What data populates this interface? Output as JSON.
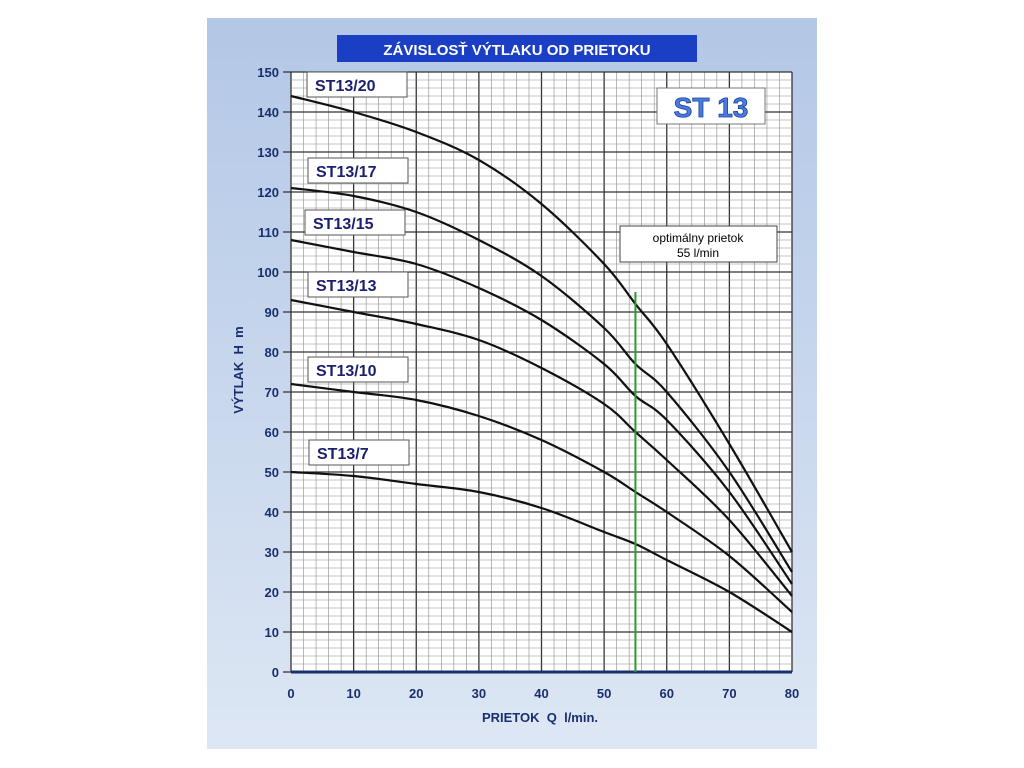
{
  "chart_data": {
    "type": "line",
    "title": "ZÁVISLOSŤ VÝTLAKU OD PRIETOKU",
    "badge": "ST 13",
    "xlabel": "PRIETOK  Q  l/min.",
    "ylabel": "VÝTLAK  H  m",
    "xlim": [
      0,
      80
    ],
    "ylim": [
      0,
      150
    ],
    "xticks": [
      0,
      10,
      20,
      30,
      40,
      50,
      60,
      70,
      80
    ],
    "yticks": [
      0,
      10,
      20,
      30,
      40,
      50,
      60,
      70,
      80,
      90,
      100,
      110,
      120,
      130,
      140,
      150
    ],
    "grid": true,
    "x": [
      0,
      10,
      20,
      30,
      40,
      50,
      55,
      60,
      70,
      80
    ],
    "series": [
      {
        "name": "ST13/20",
        "values": [
          144,
          140,
          135,
          128,
          117,
          102,
          92,
          82,
          57,
          30
        ]
      },
      {
        "name": "ST13/17",
        "values": [
          121,
          119,
          115,
          108,
          99,
          86,
          77,
          70,
          50,
          25
        ]
      },
      {
        "name": "ST13/15",
        "values": [
          108,
          105,
          102,
          96,
          88,
          77,
          69,
          63,
          45,
          22
        ]
      },
      {
        "name": "ST13/13",
        "values": [
          93,
          90,
          87,
          83,
          76,
          67,
          60,
          53,
          38,
          19
        ]
      },
      {
        "name": "ST13/10",
        "values": [
          72,
          70,
          68,
          64,
          58,
          50,
          45,
          40,
          29,
          15
        ]
      },
      {
        "name": "ST13/7",
        "values": [
          50,
          49,
          47,
          45,
          41,
          35,
          32,
          28,
          20,
          10
        ]
      }
    ],
    "annotation": {
      "line1": "optimálny prietok",
      "line2": "55 l/min",
      "x": 55,
      "ytop": 95
    },
    "colors": {
      "curve": "#111111",
      "optimal": "#2e9a2e",
      "title_bg": "#1a3fc4",
      "label_text": "#1a1f6e"
    }
  }
}
